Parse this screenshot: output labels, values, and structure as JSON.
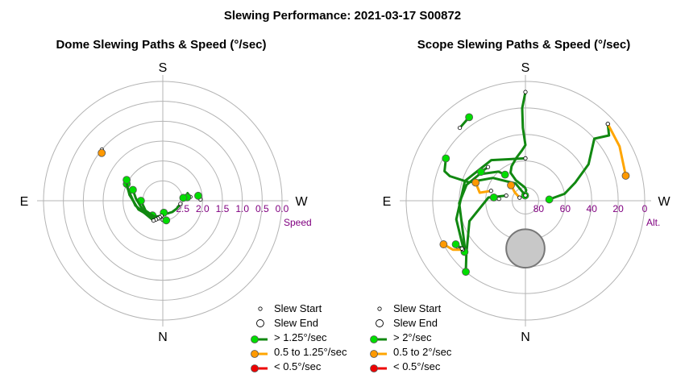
{
  "page_title": "Slewing Performance: 2021-03-17 S00872",
  "colors": {
    "ring": "#b4b4b4",
    "tick_text": "#800080",
    "fast": "#00dd00",
    "fast_line": "#118811",
    "medium": "#ff9900",
    "medium_line": "#ffa500",
    "slow": "#ee0000",
    "obstruction": "#c8c8c8"
  },
  "chart_data": [
    {
      "type": "scatter",
      "title": "Dome Slewing Paths & Speed (°/sec)",
      "coordinate_system": "polar",
      "compass": {
        "top": "S",
        "right": "W",
        "bottom": "N",
        "left": "E"
      },
      "radial_axis_label": "Speed",
      "radial_ticks": [
        "2.5",
        "2.0",
        "1.5",
        "1.0",
        "0.5",
        "0.0"
      ],
      "radial_range": [
        3.0,
        0.0
      ],
      "legend": [
        {
          "label": "Slew Start",
          "kind": "start"
        },
        {
          "label": "Slew End",
          "kind": "end"
        },
        {
          "label": "> 1.25°/sec",
          "kind": "fast"
        },
        {
          "label": "0.5 to 1.25°/sec",
          "kind": "medium"
        },
        {
          "label": "< 0.5°/sec",
          "kind": "slow"
        }
      ],
      "paths": [
        {
          "speed_class": "medium",
          "points": [
            [
              1.0,
              130
            ],
            [
              1.05,
              128
            ]
          ]
        },
        {
          "speed_class": "fast",
          "points": [
            [
              2.3,
              262
            ],
            [
              2.35,
              253
            ],
            [
              2.38,
              262
            ]
          ]
        },
        {
          "speed_class": "fast",
          "points": [
            [
              2.05,
              268
            ],
            [
              2.1,
              262
            ]
          ]
        },
        {
          "speed_class": "fast",
          "points": [
            [
              2.45,
              265
            ],
            [
              2.48,
              262
            ]
          ]
        },
        {
          "speed_class": "fast",
          "points": [
            [
              2.55,
              280
            ],
            [
              2.6,
              300
            ],
            [
              2.63,
              320
            ],
            [
              2.66,
              340
            ],
            [
              2.7,
              355
            ]
          ]
        },
        {
          "speed_class": "fast",
          "points": [
            [
              2.62,
              5
            ],
            [
              2.58,
              20
            ],
            [
              2.55,
              35
            ]
          ]
        },
        {
          "speed_class": "fast",
          "points": [
            [
              2.58,
              10
            ],
            [
              2.55,
              30
            ],
            [
              2.5,
              60
            ],
            [
              2.45,
              90
            ]
          ]
        },
        {
          "speed_class": "fast",
          "points": [
            [
              2.54,
              15
            ],
            [
              2.45,
              60
            ],
            [
              2.32,
              95
            ],
            [
              2.2,
              110
            ]
          ]
        },
        {
          "speed_class": "fast",
          "points": [
            [
              2.5,
              20
            ],
            [
              2.35,
              70
            ],
            [
              2.15,
              100
            ],
            [
              2.0,
              115
            ]
          ]
        },
        {
          "speed_class": "fast",
          "points": [
            [
              2.45,
              25
            ],
            [
              2.3,
              80
            ],
            [
              2.05,
              110
            ],
            [
              1.95,
              120
            ]
          ]
        },
        {
          "speed_class": "fast",
          "points": [
            [
              2.52,
              0
            ],
            [
              2.5,
              350
            ]
          ]
        }
      ]
    },
    {
      "type": "scatter",
      "title": "Scope Slewing Paths & Speed (°/sec)",
      "coordinate_system": "polar",
      "compass": {
        "top": "S",
        "right": "W",
        "bottom": "N",
        "left": "E"
      },
      "radial_axis_label": "Alt.",
      "radial_ticks": [
        "80",
        "60",
        "40",
        "20",
        "0"
      ],
      "radial_range": [
        90,
        0
      ],
      "legend": [
        {
          "label": "Slew Start",
          "kind": "start"
        },
        {
          "label": "Slew End",
          "kind": "end"
        },
        {
          "label": "> 2°/sec",
          "kind": "fast"
        },
        {
          "label": "0.5 to 2°/sec",
          "kind": "medium"
        },
        {
          "label": "< 0.5°/sec",
          "kind": "slow"
        }
      ],
      "obstruction": {
        "alt": 54,
        "az": 0,
        "radius_deg": 14.5
      },
      "paths": [
        {
          "speed_class": "fast",
          "points": [
            [
              8,
              180
            ],
            [
              20,
              178
            ],
            [
              35,
              178
            ],
            [
              48,
              180
            ],
            [
              52,
              176
            ],
            [
              57,
              168
            ],
            [
              62,
              158
            ],
            [
              66,
              152
            ],
            [
              73,
              155
            ],
            [
              80,
              178
            ],
            [
              82,
              184
            ],
            [
              86,
              176
            ]
          ]
        },
        {
          "speed_class": "fast",
          "points": [
            [
              28,
              56
            ],
            [
              32,
              52
            ],
            [
              36,
              60
            ],
            [
              40,
              88
            ],
            [
              44,
              105
            ],
            [
              50,
              120
            ],
            [
              60,
              137
            ],
            [
              65,
              142
            ]
          ]
        },
        {
          "speed_class": "fast",
          "points": [
            [
              5,
              227
            ],
            [
              10,
              232
            ],
            [
              20,
              228
            ],
            [
              35,
              240
            ],
            [
              50,
              250
            ],
            [
              60,
              260
            ],
            [
              70,
              265
            ],
            [
              72,
              267
            ]
          ]
        },
        {
          "speed_class": "medium",
          "points": [
            [
              5,
              227
            ],
            [
              8,
              240
            ],
            [
              12,
              256
            ]
          ]
        },
        {
          "speed_class": "fast",
          "points": [
            [
              86,
              180
            ],
            [
              75,
              150
            ],
            [
              60,
              125
            ],
            [
              45,
              108
            ],
            [
              30,
              108
            ],
            [
              25,
              110
            ],
            [
              22,
              118
            ]
          ]
        },
        {
          "speed_class": "fast",
          "points": [
            [
              75,
              105
            ],
            [
              62,
              95
            ],
            [
              45,
              70
            ],
            [
              30,
              48
            ],
            [
              20,
              40
            ]
          ]
        },
        {
          "speed_class": "fast",
          "points": [
            [
              58,
              180
            ],
            [
              50,
              140
            ],
            [
              42,
              108
            ],
            [
              36,
              75
            ],
            [
              32,
              55
            ],
            [
              30,
              50
            ]
          ]
        },
        {
          "speed_class": "medium",
          "points": [
            [
              85,
              118
            ],
            [
              80,
              128
            ],
            [
              74,
              137
            ]
          ]
        },
        {
          "speed_class": "medium",
          "points": [
            [
              63,
              106
            ],
            [
              55,
              100
            ],
            [
              50,
              110
            ]
          ]
        },
        {
          "speed_class": "medium",
          "points": [
            [
              30,
              52
            ],
            [
              24,
              56
            ],
            [
              20,
              62
            ]
          ]
        },
        {
          "speed_class": "fast",
          "points": [
            [
              52,
              132
            ],
            [
              50,
              123
            ]
          ]
        },
        {
          "speed_class": "fast",
          "points": [
            [
              70,
              94
            ],
            [
              66,
              96
            ]
          ]
        },
        {
          "speed_class": "fast",
          "points": [
            [
              30,
              53
            ],
            [
              28,
              58
            ]
          ]
        },
        {
          "speed_class": "fast",
          "points": [
            [
              16,
              138
            ],
            [
              14,
              146
            ]
          ]
        }
      ]
    }
  ]
}
